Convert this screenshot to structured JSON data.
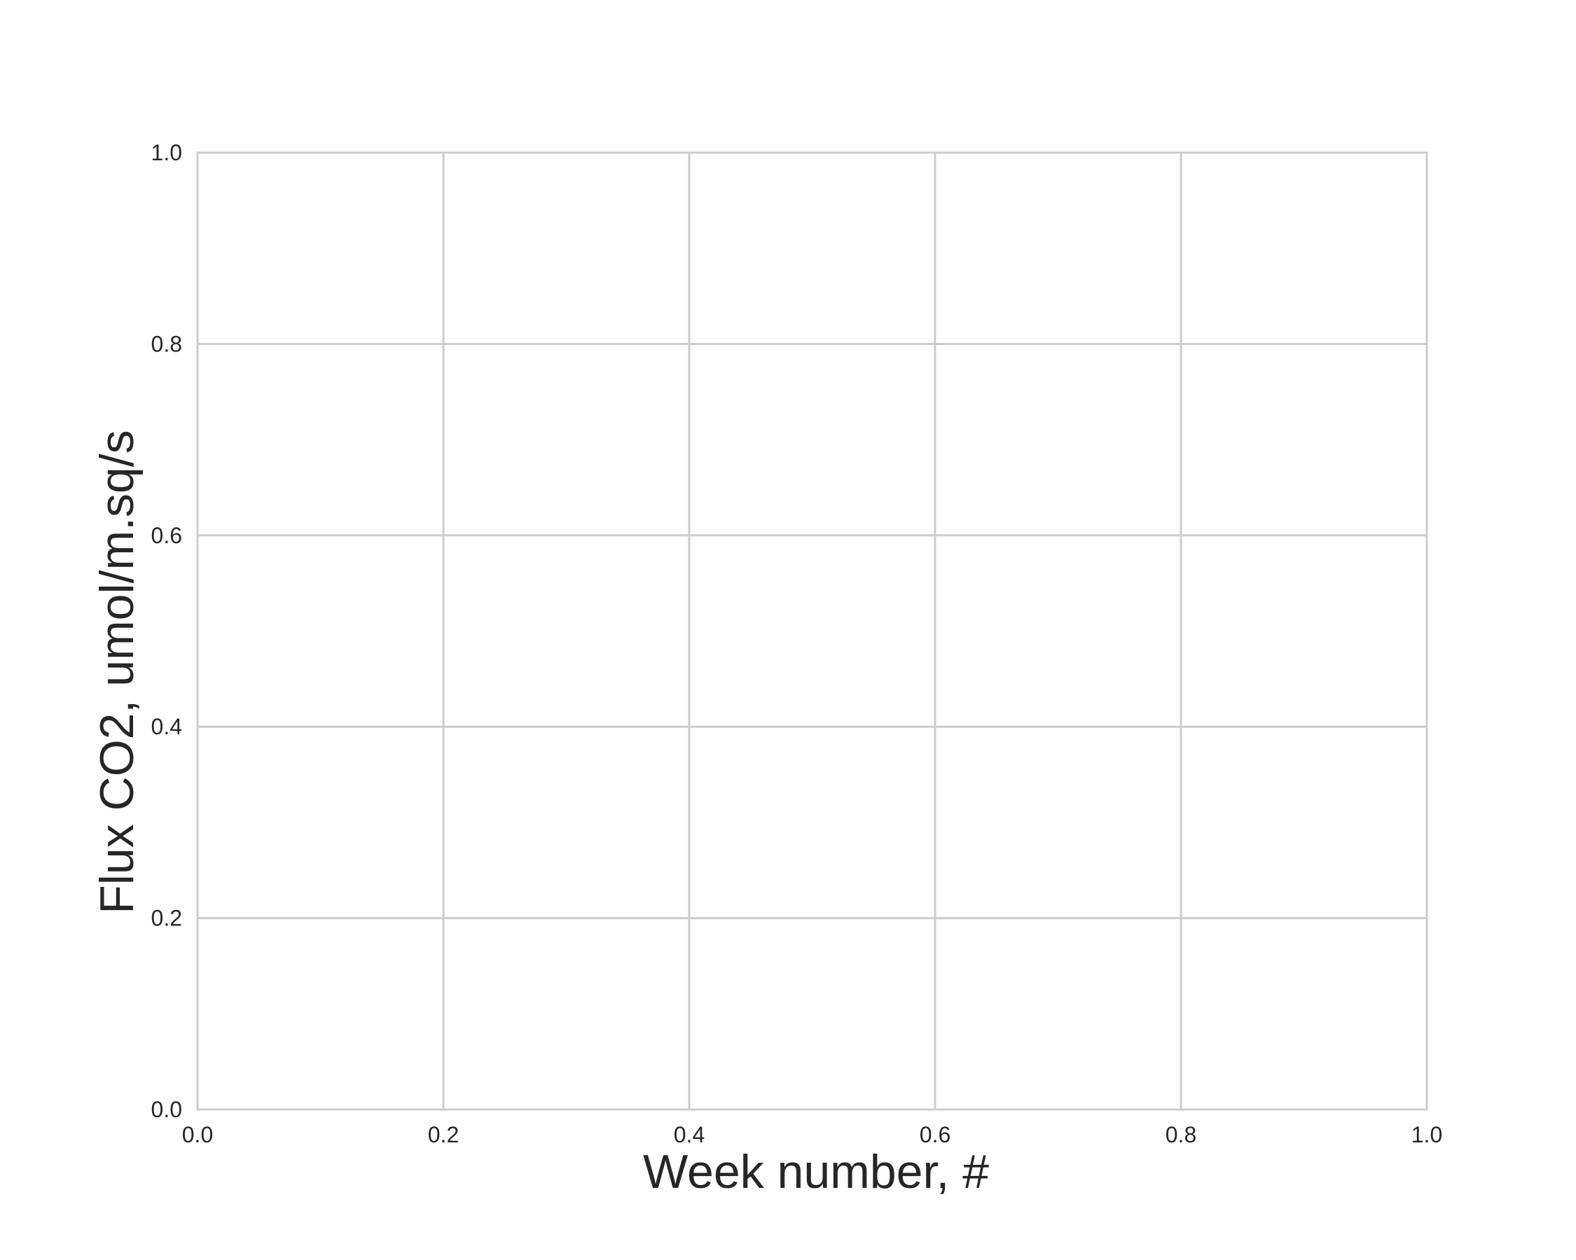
{
  "chart_data": {
    "type": "line",
    "title": "",
    "xlabel": "Week number, #",
    "ylabel": "Flux CO2, umol/m.sq/s",
    "xlim": [
      0.0,
      1.0
    ],
    "ylim": [
      0.0,
      1.0
    ],
    "xticks": [
      "0.0",
      "0.2",
      "0.4",
      "0.6",
      "0.8",
      "1.0"
    ],
    "yticks": [
      "0.0",
      "0.2",
      "0.4",
      "0.6",
      "0.8",
      "1.0"
    ],
    "grid": true,
    "series": []
  },
  "colors": {
    "grid": "#cccccc",
    "text": "#262626",
    "background": "#ffffff"
  }
}
